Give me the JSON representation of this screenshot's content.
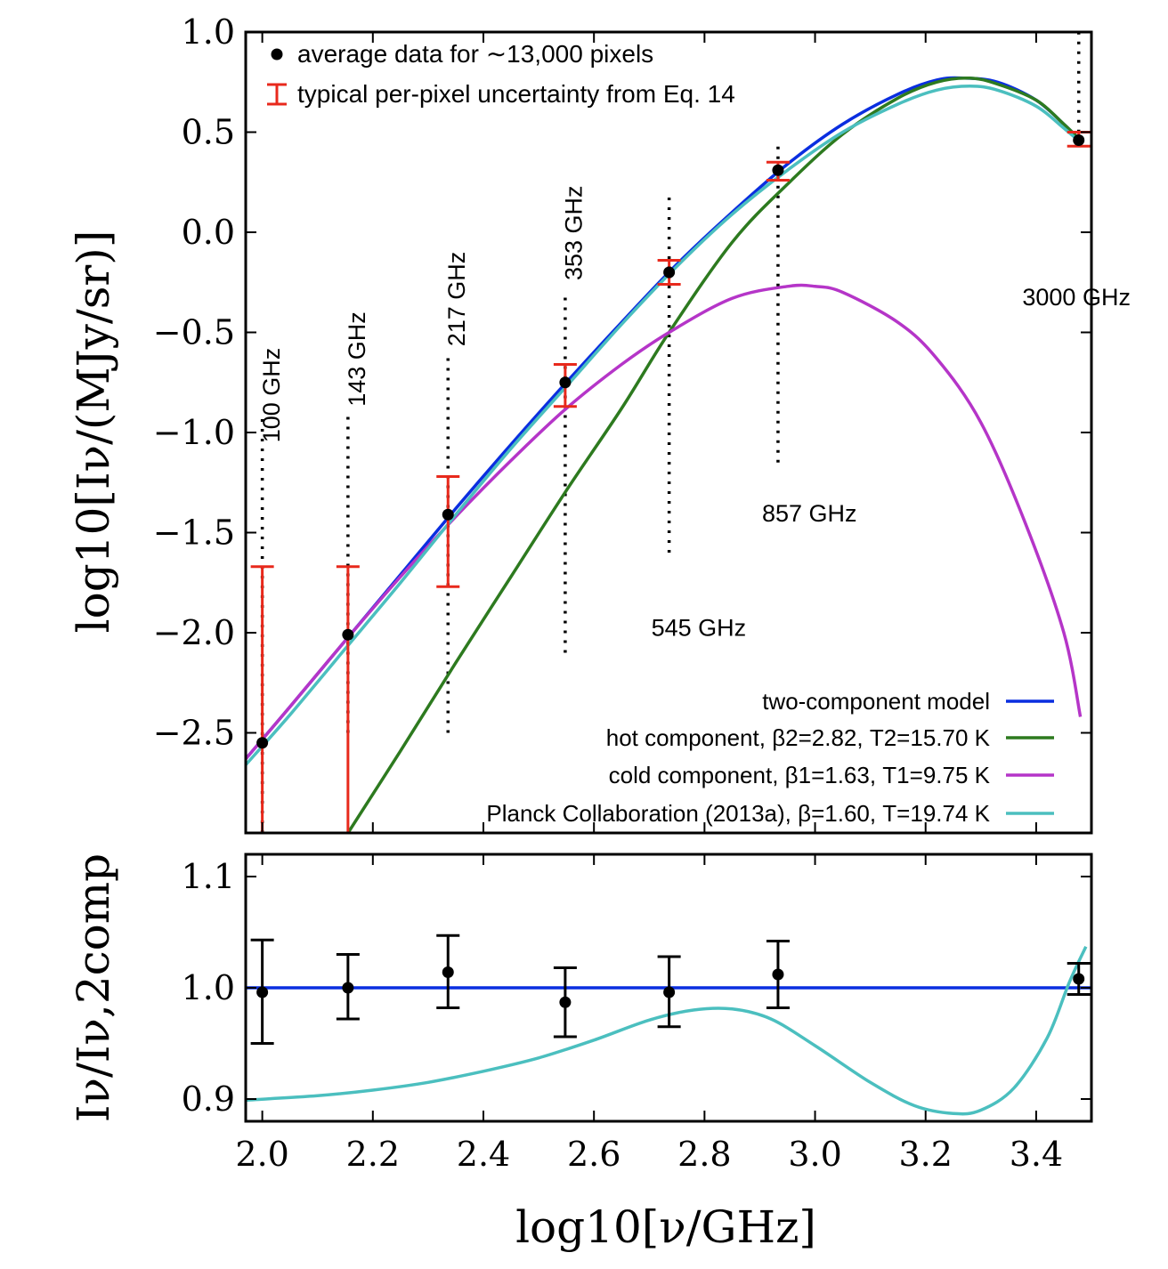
{
  "chart_data": [
    {
      "type": "line",
      "panel": "top",
      "xlabel": "log10[ν/GHz]",
      "ylabel": "log10[Iν/(MJy/sr)]",
      "xlim": [
        1.97,
        3.5
      ],
      "ylim": [
        -3.0,
        1.0
      ],
      "xticks": [
        "2.0",
        "2.2",
        "2.4",
        "2.6",
        "2.8",
        "3.0",
        "3.2",
        "3.4"
      ],
      "yticks": [
        "1.0",
        "0.5",
        "0.0",
        "−0.5",
        "−1.0",
        "−1.5",
        "−2.0",
        "−2.5"
      ],
      "ytick_values": [
        1.0,
        0.5,
        0.0,
        -0.5,
        -1.0,
        -1.5,
        -2.0,
        -2.5
      ],
      "legend_top": [
        {
          "label": "average data for ∼13,000 pixels",
          "marker": "dot",
          "color": "#000000"
        },
        {
          "label": "typical per-pixel uncertainty from Eq. 14",
          "marker": "errorbar",
          "color": "#e8291c"
        }
      ],
      "legend_bottom_right": [
        {
          "label": "two-component model",
          "color": "#0a2ee0"
        },
        {
          "label": "hot component, β2=2.82,  T2=15.70 K",
          "color": "#2d7a1f"
        },
        {
          "label": "cold component, β1=1.63,  T1=9.75 K",
          "color": "#b535c8"
        },
        {
          "label": "Planck Collaboration (2013a), β=1.60,  T=19.74 K",
          "color": "#4bbfbf"
        }
      ],
      "frequencies": [
        {
          "label": "100 GHz",
          "x": 2.0
        },
        {
          "label": "143 GHz",
          "x": 2.155
        },
        {
          "label": "217 GHz",
          "x": 2.336
        },
        {
          "label": "353 GHz",
          "x": 2.548
        },
        {
          "label": "545 GHz",
          "x": 2.736
        },
        {
          "label": "857 GHz",
          "x": 2.933
        },
        {
          "label": "3000 GHz",
          "x": 3.477
        }
      ],
      "data_points": [
        {
          "x": 2.0,
          "y": -2.55,
          "err_low": -3.0,
          "err_high": -1.67
        },
        {
          "x": 2.155,
          "y": -2.01,
          "err_low": -3.0,
          "err_high": -1.67
        },
        {
          "x": 2.336,
          "y": -1.41,
          "err_low": -1.77,
          "err_high": -1.22
        },
        {
          "x": 2.548,
          "y": -0.75,
          "err_low": -0.87,
          "err_high": -0.66
        },
        {
          "x": 2.736,
          "y": -0.2,
          "err_low": -0.26,
          "err_high": -0.14
        },
        {
          "x": 2.933,
          "y": 0.31,
          "err_low": 0.26,
          "err_high": 0.35
        },
        {
          "x": 3.477,
          "y": 0.46,
          "err_low": 0.43,
          "err_high": 0.5
        }
      ],
      "series": [
        {
          "name": "two-component model",
          "color": "#0a2ee0",
          "x": [
            1.97,
            2.05,
            2.15,
            2.25,
            2.35,
            2.45,
            2.55,
            2.65,
            2.75,
            2.85,
            2.95,
            3.05,
            3.15,
            3.22,
            3.27,
            3.33,
            3.4,
            3.45,
            3.48
          ],
          "y": [
            -2.63,
            -2.37,
            -2.04,
            -1.71,
            -1.38,
            -1.06,
            -0.75,
            -0.45,
            -0.16,
            0.1,
            0.34,
            0.54,
            0.69,
            0.76,
            0.77,
            0.75,
            0.66,
            0.54,
            0.46
          ]
        },
        {
          "name": "hot component",
          "color": "#2d7a1f",
          "x": [
            2.155,
            2.25,
            2.35,
            2.45,
            2.55,
            2.65,
            2.736,
            2.85,
            2.95,
            3.05,
            3.15,
            3.22,
            3.28,
            3.33,
            3.4,
            3.45,
            3.48
          ],
          "y": [
            -3.0,
            -2.59,
            -2.15,
            -1.72,
            -1.29,
            -0.88,
            -0.5,
            -0.05,
            0.24,
            0.49,
            0.67,
            0.75,
            0.77,
            0.74,
            0.66,
            0.54,
            0.46
          ]
        },
        {
          "name": "cold component",
          "color": "#b535c8",
          "x": [
            1.97,
            2.05,
            2.15,
            2.25,
            2.35,
            2.45,
            2.55,
            2.65,
            2.736,
            2.85,
            2.95,
            3.0,
            3.05,
            3.15,
            3.22,
            3.3,
            3.38,
            3.45,
            3.48
          ],
          "y": [
            -2.63,
            -2.37,
            -2.04,
            -1.72,
            -1.42,
            -1.14,
            -0.88,
            -0.66,
            -0.5,
            -0.33,
            -0.27,
            -0.27,
            -0.3,
            -0.45,
            -0.63,
            -0.95,
            -1.45,
            -2.0,
            -2.42
          ]
        },
        {
          "name": "Planck Collaboration (2013a)",
          "color": "#4bbfbf",
          "x": [
            1.97,
            2.05,
            2.15,
            2.25,
            2.35,
            2.45,
            2.55,
            2.65,
            2.75,
            2.85,
            2.95,
            3.05,
            3.15,
            3.22,
            3.28,
            3.33,
            3.4,
            3.45,
            3.48
          ],
          "y": [
            -2.66,
            -2.41,
            -2.08,
            -1.75,
            -1.41,
            -1.08,
            -0.77,
            -0.46,
            -0.17,
            0.09,
            0.31,
            0.5,
            0.64,
            0.71,
            0.73,
            0.71,
            0.63,
            0.52,
            0.45
          ]
        }
      ]
    },
    {
      "type": "scatter",
      "panel": "bottom",
      "xlabel": "log10[ν/GHz]",
      "ylabel": "Iν/Iν,2comp",
      "xlim": [
        1.97,
        3.5
      ],
      "ylim": [
        0.88,
        1.12
      ],
      "xticks": [
        "2.0",
        "2.2",
        "2.4",
        "2.6",
        "2.8",
        "3.0",
        "3.2",
        "3.4"
      ],
      "xtick_values": [
        2.0,
        2.2,
        2.4,
        2.6,
        2.8,
        3.0,
        3.2,
        3.4
      ],
      "yticks": [
        "1.1",
        "1.0",
        "0.9"
      ],
      "ytick_values": [
        1.1,
        1.0,
        0.9
      ],
      "data_points": [
        {
          "x": 2.0,
          "y": 0.996,
          "err_low": 0.95,
          "err_high": 1.043
        },
        {
          "x": 2.155,
          "y": 1.0,
          "err_low": 0.972,
          "err_high": 1.03
        },
        {
          "x": 2.336,
          "y": 1.014,
          "err_low": 0.982,
          "err_high": 1.047
        },
        {
          "x": 2.548,
          "y": 0.987,
          "err_low": 0.956,
          "err_high": 1.018
        },
        {
          "x": 2.736,
          "y": 0.996,
          "err_low": 0.965,
          "err_high": 1.028
        },
        {
          "x": 2.933,
          "y": 1.012,
          "err_low": 0.982,
          "err_high": 1.042
        },
        {
          "x": 3.477,
          "y": 1.008,
          "err_low": 0.994,
          "err_high": 1.022
        }
      ],
      "series": [
        {
          "name": "two-component model",
          "color": "#0a2ee0",
          "x": [
            1.97,
            3.5
          ],
          "y": [
            1.0,
            1.0
          ]
        },
        {
          "name": "Planck Collaboration (2013a)",
          "color": "#4bbfbf",
          "x": [
            1.97,
            2.1,
            2.2,
            2.3,
            2.4,
            2.5,
            2.6,
            2.7,
            2.78,
            2.85,
            2.92,
            3.0,
            3.1,
            3.18,
            3.25,
            3.3,
            3.36,
            3.42,
            3.46,
            3.49
          ],
          "y": [
            0.899,
            0.903,
            0.908,
            0.915,
            0.925,
            0.937,
            0.953,
            0.971,
            0.98,
            0.981,
            0.972,
            0.948,
            0.915,
            0.894,
            0.887,
            0.89,
            0.91,
            0.955,
            1.005,
            1.037
          ]
        }
      ]
    }
  ]
}
